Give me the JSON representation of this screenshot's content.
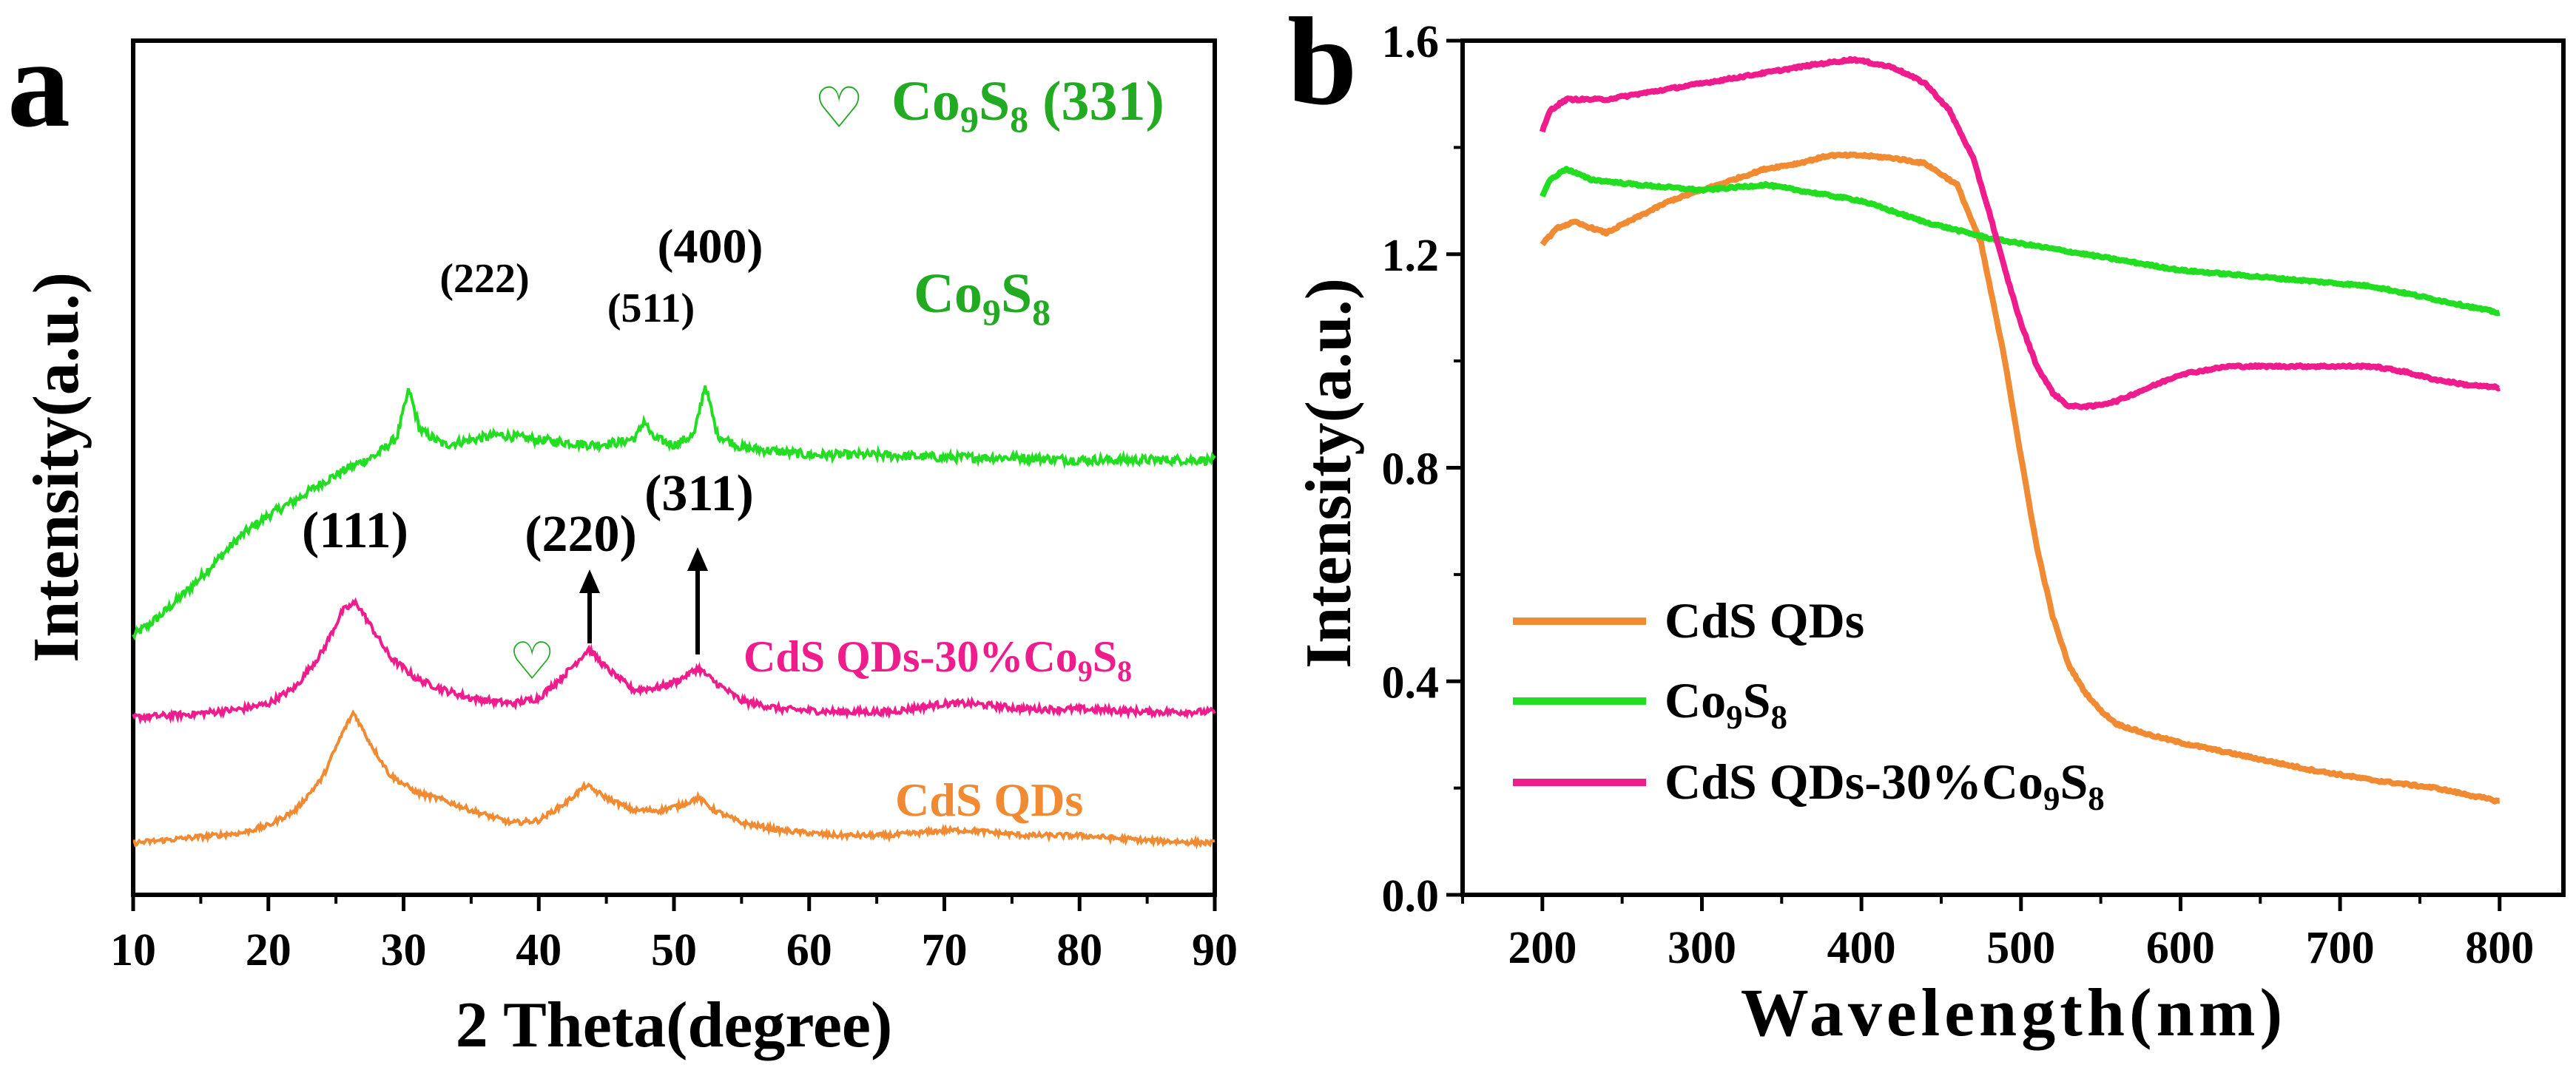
{
  "chart_data": [
    {
      "panel": "a",
      "type": "line",
      "xlabel": "2 Theta(degree)",
      "ylabel": "Intensity(a.u.)",
      "xlim": [
        10,
        90
      ],
      "xticks": [
        "10",
        "20",
        "30",
        "40",
        "50",
        "60",
        "70",
        "80",
        "90"
      ],
      "y_ticks_shown": false,
      "y_scale_note": "arbitrary units, curves vertically offset",
      "legend_marker": "♡",
      "legend_text": {
        "main": "Co",
        "sub1": "9",
        "mid": "S",
        "sub2": "8",
        "tail": " (331)"
      },
      "series": [
        {
          "name": "Co9S8",
          "color": "#22dd22",
          "label": {
            "main": "Co",
            "sub1": "9",
            "mid": "S",
            "sub2": "8"
          },
          "noise": 0.18,
          "points": [
            [
              10,
              0.0
            ],
            [
              12,
              0.8
            ],
            [
              14,
              1.8
            ],
            [
              16,
              2.9
            ],
            [
              18,
              4.0
            ],
            [
              20,
              4.8
            ],
            [
              22,
              5.4
            ],
            [
              24,
              6.1
            ],
            [
              26,
              6.7
            ],
            [
              28,
              7.2
            ],
            [
              29.5,
              7.9
            ],
            [
              30.4,
              9.8
            ],
            [
              31.2,
              8.2
            ],
            [
              33,
              7.6
            ],
            [
              35,
              7.8
            ],
            [
              37,
              8.0
            ],
            [
              40,
              7.8
            ],
            [
              44,
              7.6
            ],
            [
              46,
              7.7
            ],
            [
              47.2,
              7.9
            ],
            [
              47.8,
              8.6
            ],
            [
              48.4,
              7.9
            ],
            [
              50,
              7.6
            ],
            [
              51.5,
              8.0
            ],
            [
              52.3,
              10.0
            ],
            [
              53.2,
              8.0
            ],
            [
              55,
              7.5
            ],
            [
              60,
              7.2
            ],
            [
              65,
              7.2
            ],
            [
              70,
              7.1
            ],
            [
              75,
              7.1
            ],
            [
              80,
              7.0
            ],
            [
              85,
              7.0
            ],
            [
              90,
              7.0
            ]
          ],
          "peak_labels": [
            {
              "x": 30.4,
              "text": "(222)"
            },
            {
              "x": 47.8,
              "text": "(511)"
            },
            {
              "x": 52.3,
              "text": "(400)"
            }
          ]
        },
        {
          "name": "CdS QDs-30%Co9S8",
          "color": "#ee1c8c",
          "label": {
            "main": "CdS QDs-30%Co",
            "sub1": "9",
            "mid": "S",
            "sub2": "8"
          },
          "noise": 0.12,
          "points": [
            [
              10,
              0.0
            ],
            [
              14,
              0.1
            ],
            [
              18,
              0.3
            ],
            [
              20,
              0.5
            ],
            [
              22,
              1.1
            ],
            [
              24,
              2.4
            ],
            [
              25.5,
              3.9
            ],
            [
              26.5,
              4.2
            ],
            [
              27.5,
              3.4
            ],
            [
              29,
              2.2
            ],
            [
              31,
              1.4
            ],
            [
              33,
              1.0
            ],
            [
              35,
              0.7
            ],
            [
              38,
              0.5
            ],
            [
              40,
              0.7
            ],
            [
              42,
              1.6
            ],
            [
              43.7,
              2.5
            ],
            [
              45,
              1.8
            ],
            [
              47,
              1.0
            ],
            [
              49,
              1.1
            ],
            [
              50.5,
              1.4
            ],
            [
              51.8,
              1.8
            ],
            [
              53,
              1.3
            ],
            [
              55,
              0.6
            ],
            [
              58,
              0.3
            ],
            [
              62,
              0.2
            ],
            [
              66,
              0.2
            ],
            [
              70,
              0.5
            ],
            [
              72,
              0.5
            ],
            [
              76,
              0.3
            ],
            [
              80,
              0.3
            ],
            [
              85,
              0.2
            ],
            [
              90,
              0.2
            ]
          ],
          "peak_labels": [
            {
              "x": 26.3,
              "text": "(111)"
            },
            {
              "x": 43.7,
              "text": "(220)"
            },
            {
              "x": 51.8,
              "text": "(311)"
            }
          ]
        },
        {
          "name": "CdS QDs",
          "color": "#f08a33",
          "label": {
            "main": "CdS QDs",
            "sub1": "",
            "mid": "",
            "sub2": ""
          },
          "noise": 0.1,
          "points": [
            [
              10,
              0.0
            ],
            [
              14,
              0.2
            ],
            [
              18,
              0.4
            ],
            [
              20,
              0.7
            ],
            [
              22,
              1.3
            ],
            [
              24,
              2.6
            ],
            [
              25.5,
              4.4
            ],
            [
              26.3,
              5.2
            ],
            [
              27.5,
              4.0
            ],
            [
              29,
              2.7
            ],
            [
              31,
              2.0
            ],
            [
              33,
              1.7
            ],
            [
              35,
              1.3
            ],
            [
              38,
              0.8
            ],
            [
              40,
              0.9
            ],
            [
              42,
              1.6
            ],
            [
              43.5,
              2.3
            ],
            [
              45,
              1.8
            ],
            [
              47,
              1.3
            ],
            [
              49,
              1.3
            ],
            [
              50.5,
              1.5
            ],
            [
              51.8,
              1.8
            ],
            [
              53,
              1.3
            ],
            [
              55,
              0.8
            ],
            [
              58,
              0.5
            ],
            [
              62,
              0.3
            ],
            [
              66,
              0.3
            ],
            [
              70,
              0.5
            ],
            [
              72,
              0.5
            ],
            [
              76,
              0.3
            ],
            [
              80,
              0.3
            ],
            [
              85,
              0.1
            ],
            [
              90,
              0.0
            ]
          ]
        }
      ],
      "marker_heart_x": 39.5
    },
    {
      "panel": "b",
      "type": "line",
      "xlabel": "Wavelength(nm)",
      "ylabel": "Intensity(a.u.)",
      "xlim": [
        150,
        840
      ],
      "ylim": [
        0.0,
        1.6
      ],
      "xticks": [
        200,
        300,
        400,
        500,
        600,
        700,
        800
      ],
      "xtick_labels": [
        "200",
        "300",
        "400",
        "500",
        "600",
        "700",
        "800"
      ],
      "yticks": [
        0.0,
        0.4,
        0.8,
        1.2,
        1.6
      ],
      "ytick_labels": [
        "0.0",
        "0.4",
        "0.8",
        "1.2",
        "1.6"
      ],
      "legend_position": "bottom-left",
      "series": [
        {
          "name": "CdS QDs",
          "color": "#f08a33",
          "label": {
            "main": "CdS QDs",
            "sub1": "",
            "mid": "",
            "sub2": ""
          },
          "points": [
            [
              200,
              1.22
            ],
            [
              210,
              1.25
            ],
            [
              220,
              1.26
            ],
            [
              240,
              1.24
            ],
            [
              260,
              1.27
            ],
            [
              280,
              1.3
            ],
            [
              300,
              1.32
            ],
            [
              320,
              1.34
            ],
            [
              340,
              1.36
            ],
            [
              360,
              1.37
            ],
            [
              380,
              1.385
            ],
            [
              400,
              1.385
            ],
            [
              420,
              1.38
            ],
            [
              440,
              1.37
            ],
            [
              460,
              1.33
            ],
            [
              475,
              1.22
            ],
            [
              490,
              1.0
            ],
            [
              500,
              0.82
            ],
            [
              510,
              0.65
            ],
            [
              520,
              0.52
            ],
            [
              530,
              0.43
            ],
            [
              540,
              0.38
            ],
            [
              550,
              0.345
            ],
            [
              560,
              0.32
            ],
            [
              580,
              0.3
            ],
            [
              600,
              0.285
            ],
            [
              640,
              0.26
            ],
            [
              680,
              0.235
            ],
            [
              720,
              0.215
            ],
            [
              760,
              0.2
            ],
            [
              800,
              0.175
            ]
          ]
        },
        {
          "name": "Co9S8",
          "color": "#22dd22",
          "label": {
            "main": "Co",
            "sub1": "9",
            "mid": "S",
            "sub2": "8"
          },
          "points": [
            [
              200,
              1.31
            ],
            [
              205,
              1.34
            ],
            [
              215,
              1.36
            ],
            [
              230,
              1.34
            ],
            [
              260,
              1.33
            ],
            [
              300,
              1.32
            ],
            [
              340,
              1.33
            ],
            [
              360,
              1.32
            ],
            [
              400,
              1.3
            ],
            [
              440,
              1.26
            ],
            [
              480,
              1.23
            ],
            [
              520,
              1.21
            ],
            [
              560,
              1.19
            ],
            [
              600,
              1.17
            ],
            [
              640,
              1.16
            ],
            [
              680,
              1.15
            ],
            [
              720,
              1.14
            ],
            [
              760,
              1.115
            ],
            [
              800,
              1.09
            ]
          ]
        },
        {
          "name": "CdS QDs-30%Co9S8",
          "color": "#ee1c8c",
          "label": {
            "main": "CdS QDs-30%Co",
            "sub1": "9",
            "mid": "S",
            "sub2": "8"
          },
          "points": [
            [
              200,
              1.43
            ],
            [
              205,
              1.47
            ],
            [
              215,
              1.49
            ],
            [
              240,
              1.49
            ],
            [
              260,
              1.5
            ],
            [
              300,
              1.52
            ],
            [
              340,
              1.54
            ],
            [
              370,
              1.555
            ],
            [
              395,
              1.565
            ],
            [
              420,
              1.55
            ],
            [
              440,
              1.52
            ],
            [
              455,
              1.47
            ],
            [
              470,
              1.38
            ],
            [
              480,
              1.28
            ],
            [
              490,
              1.17
            ],
            [
              500,
              1.07
            ],
            [
              510,
              0.99
            ],
            [
              520,
              0.94
            ],
            [
              530,
              0.915
            ],
            [
              545,
              0.915
            ],
            [
              560,
              0.925
            ],
            [
              580,
              0.95
            ],
            [
              600,
              0.975
            ],
            [
              630,
              0.99
            ],
            [
              660,
              0.99
            ],
            [
              690,
              0.99
            ],
            [
              720,
              0.99
            ],
            [
              740,
              0.98
            ],
            [
              760,
              0.965
            ],
            [
              780,
              0.955
            ],
            [
              800,
              0.95
            ]
          ]
        }
      ]
    }
  ],
  "panel_letters": [
    "a",
    "b"
  ]
}
